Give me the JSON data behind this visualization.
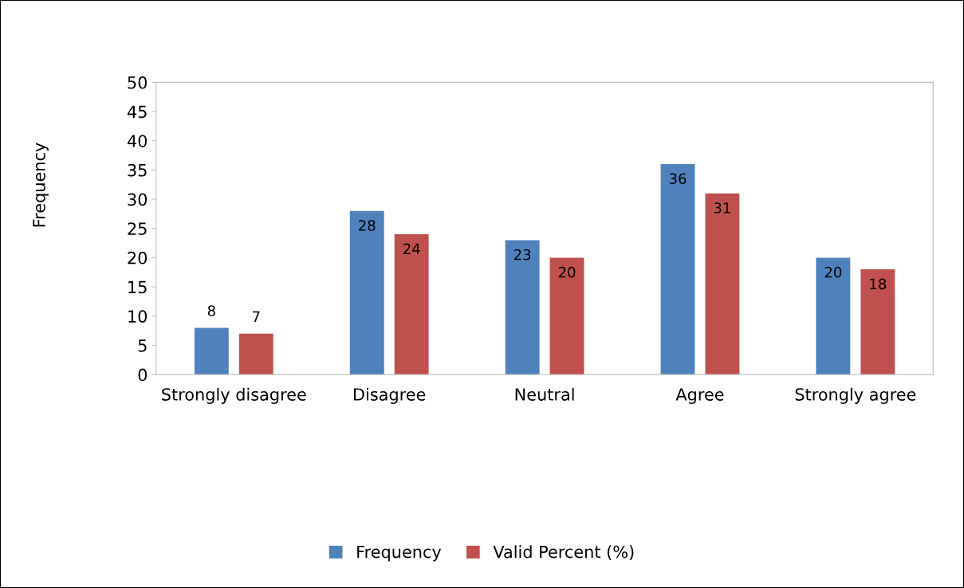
{
  "chart_data": {
    "type": "bar",
    "ylabel": "Frequency",
    "categories": [
      "Strongly disagree",
      "Disagree",
      "Neutral",
      "Agree",
      "Strongly agree"
    ],
    "series": [
      {
        "name": "Frequency",
        "color": "#4f81bd",
        "values": [
          8,
          28,
          23,
          36,
          20
        ]
      },
      {
        "name": "Valid Percent (%)",
        "color": "#c0504d",
        "values": [
          7,
          24,
          20,
          31,
          18
        ]
      }
    ],
    "ylim": [
      0,
      50
    ],
    "yticks": [
      0,
      5,
      10,
      15,
      20,
      25,
      30,
      35,
      40,
      45,
      50
    ],
    "data_labels": true,
    "grid": false,
    "legend": "bottom"
  }
}
